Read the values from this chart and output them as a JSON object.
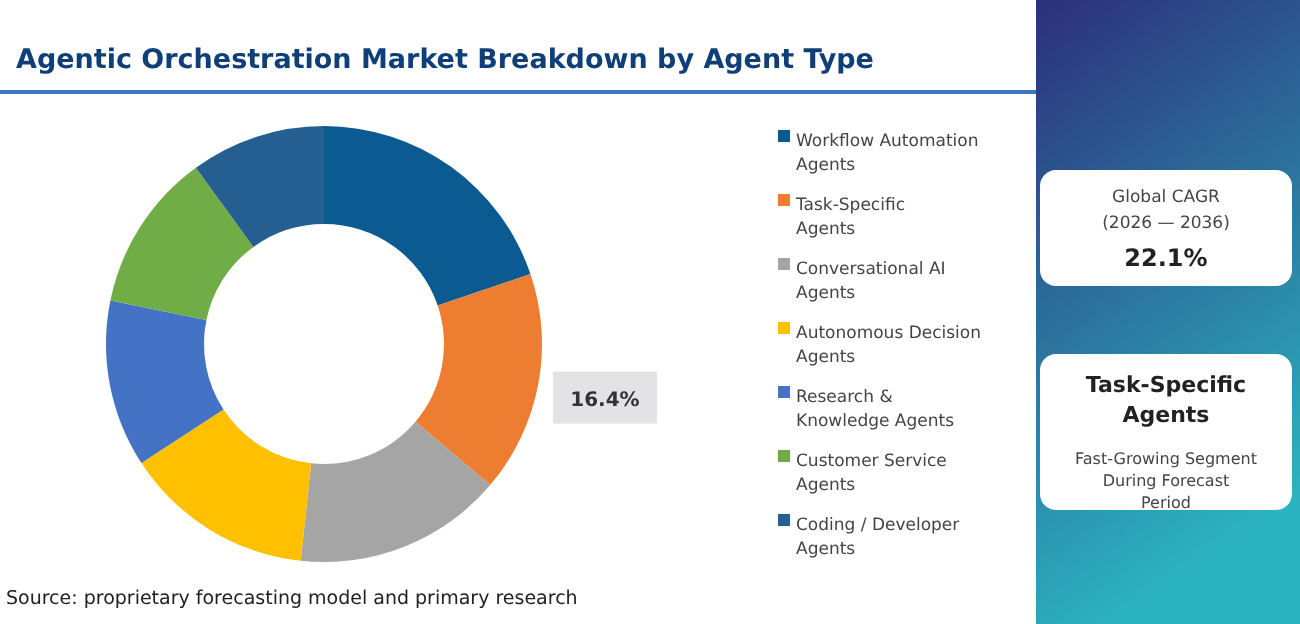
{
  "chart_data": [
    {
      "type": "donut",
      "title": "Agentic Orchestration Market Breakdown by Agent Type",
      "categories": [
        "Workflow Automation Agents",
        "Task-Specific Agents",
        "Conversational AI Agents",
        "Autonomous Decision Agents",
        "Research & Knowledge Agents",
        "Customer Service Agents",
        "Coding / Developer Agents"
      ],
      "values": [
        19.8,
        16.4,
        15.5,
        14.1,
        12.4,
        11.8,
        10.0
      ],
      "colors": [
        "#0b5a92",
        "#ed7d31",
        "#a5a5a5",
        "#ffc000",
        "#4472c4",
        "#70ad47",
        "#255e91"
      ],
      "value_labels": [
        null,
        "16.4%",
        null,
        null,
        null,
        null,
        null
      ],
      "legend": "right",
      "annotations": [
        "Source: proprietary forecasting model and primary research"
      ]
    },
    {
      "type": "other",
      "annotations": [
        "Global CAGR",
        "(2026 — 2036)",
        "22.1%",
        "Task-Specific Agents",
        "Fast-Growing Segment During Forecast Period"
      ]
    }
  ]
}
